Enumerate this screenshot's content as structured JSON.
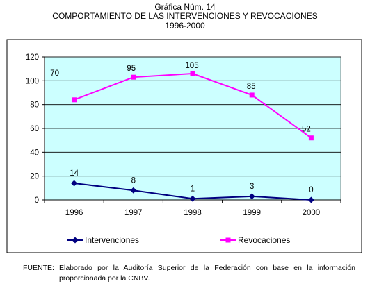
{
  "header": {
    "line1": "Gráfica Núm. 14",
    "line2": "COMPORTAMIENTO DE LAS INTERVENCIONES Y REVOCACIONES",
    "line3": "1996-2000"
  },
  "chart_data": {
    "type": "line",
    "title": "COMPORTAMIENTO DE LAS INTERVENCIONES Y REVOCACIONES",
    "subtitle": "1996-2000",
    "xlabel": "",
    "ylabel": "",
    "categories": [
      "1996",
      "1997",
      "1998",
      "1999",
      "2000"
    ],
    "ylim": [
      0,
      120
    ],
    "yticks": [
      0,
      20,
      40,
      60,
      80,
      100,
      120
    ],
    "grid": true,
    "legend": "bottom",
    "plot_background": "#ccffff",
    "series": [
      {
        "name": "Intervenciones",
        "values": [
          14,
          8,
          1,
          3,
          0
        ],
        "color": "#000080",
        "marker": "diamond"
      },
      {
        "name": "Revocaciones",
        "values": [
          84,
          103,
          106,
          88,
          52
        ],
        "labels": [
          "70",
          "95",
          "105",
          "85",
          "52"
        ],
        "color": "#ff00ff",
        "marker": "square"
      }
    ]
  },
  "footer": {
    "label": "FUENTE:",
    "text": "Elaborado por la Auditoría Superior de la Federación con base en la información proporcionada por la CNBV."
  }
}
